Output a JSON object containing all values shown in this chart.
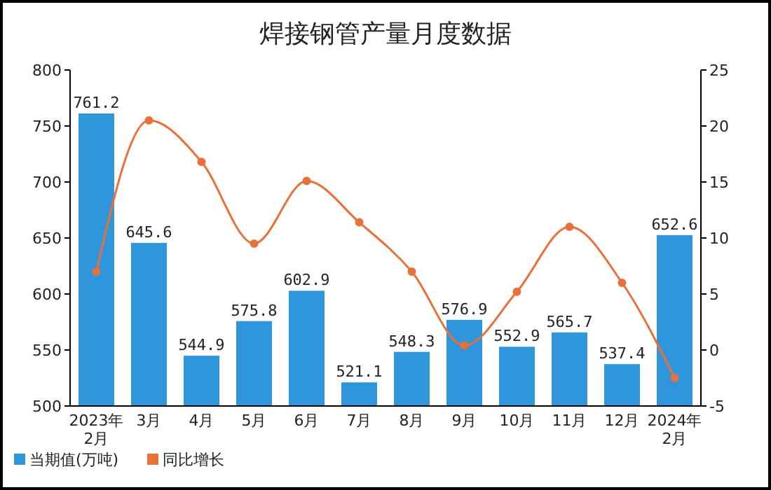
{
  "chart_data": {
    "type": "bar",
    "title": "焊接钢管产量月度数据",
    "categories": [
      "2023年\n2月",
      "3月",
      "4月",
      "5月",
      "6月",
      "7月",
      "8月",
      "9月",
      "10月",
      "11月",
      "12月",
      "2024年\n2月"
    ],
    "series": [
      {
        "name": "当期值(万吨)",
        "color": "#2f96dc",
        "values": [
          761.2,
          645.6,
          544.9,
          575.8,
          602.9,
          521.1,
          548.3,
          576.9,
          552.9,
          565.7,
          537.4,
          652.6
        ],
        "value_labels": [
          "761.2",
          "645.6",
          "544.9",
          "575.8",
          "602.9",
          "521.1",
          "548.3",
          "576.9",
          "552.9",
          "565.7",
          "537.4",
          "652.6"
        ]
      },
      {
        "name": "同比增长",
        "type": "line",
        "axis": "y2",
        "color": "#e8703a",
        "marker": "circle",
        "values": [
          7.0,
          20.5,
          16.8,
          9.5,
          15.1,
          11.4,
          7.0,
          0.4,
          5.2,
          11.0,
          6.0,
          -2.5
        ]
      }
    ],
    "ylim": [
      500,
      800
    ],
    "yticks": [
      500,
      550,
      600,
      650,
      700,
      750,
      800
    ],
    "y2lim": [
      -5,
      25
    ],
    "y2ticks": [
      -5,
      0,
      5,
      10,
      15,
      20,
      25
    ],
    "grid": false,
    "legend": "bottom left"
  }
}
